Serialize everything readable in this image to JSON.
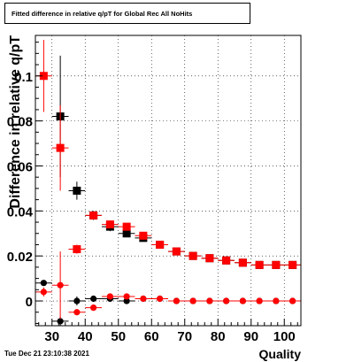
{
  "header": {
    "title": "Fitted difference in relative q/pT for Global Rec All NoHits"
  },
  "footer": {
    "timestamp": "Tue Dec 21 23:10:38 2021"
  },
  "chart_data": {
    "type": "scatter",
    "title": "Fitted difference in relative q/pT for Global Rec All NoHits",
    "xlabel": "Quality",
    "ylabel": "Difference in relative q/pT",
    "xlim": [
      25,
      105
    ],
    "ylim": [
      -0.011,
      0.118
    ],
    "x_ticks": [
      30,
      40,
      50,
      60,
      70,
      80,
      90,
      100
    ],
    "y_ticks": [
      0,
      0.02,
      0.04,
      0.06,
      0.08,
      0.1
    ],
    "y_tick_labels": [
      "0",
      "0.02",
      "0.04",
      "0.06",
      "0.08",
      "0.1"
    ],
    "grid": true,
    "series": [
      {
        "color": "#000000",
        "marker": "square",
        "x": [
          32.5,
          37.5,
          42.5,
          47.5,
          52.5,
          57.5,
          62.5,
          67.5,
          72.5,
          77.5,
          82.5,
          87.5,
          92.5,
          97.5,
          102.5
        ],
        "y": [
          0.082,
          0.049,
          0.038,
          0.033,
          0.03,
          0.028,
          0.025,
          0.022,
          0.02,
          0.019,
          0.018,
          0.017,
          0.016,
          0.016,
          0.016
        ],
        "yerr": [
          0.027,
          0.004,
          0.002,
          0.002,
          0.001,
          0.001,
          0.001,
          0.001,
          0.001,
          0.001,
          0.001,
          0.001,
          0.001,
          0.001,
          0.001
        ]
      },
      {
        "color": "#ff0000",
        "marker": "square",
        "x": [
          27.5,
          32.5,
          37.5,
          42.5,
          47.5,
          52.5,
          57.5,
          62.5,
          67.5,
          72.5,
          77.5,
          82.5,
          87.5,
          92.5,
          97.5,
          102.5
        ],
        "y": [
          0.1,
          0.068,
          0.023,
          0.038,
          0.034,
          0.033,
          0.029,
          0.025,
          0.022,
          0.02,
          0.019,
          0.018,
          0.017,
          0.016,
          0.016,
          0.016
        ],
        "yerr": [
          0.016,
          0.019,
          0.002,
          0.001,
          0.001,
          0.001,
          0.001,
          0.001,
          0.001,
          0.001,
          0.001,
          0.001,
          0.001,
          0.001,
          0.001,
          0.001
        ]
      },
      {
        "color": "#000000",
        "marker": "circle",
        "x": [
          27.5,
          32.5,
          37.5,
          42.5,
          47.5,
          52.5,
          57.5,
          62.5,
          67.5,
          72.5,
          77.5,
          82.5,
          87.5,
          92.5,
          97.5,
          102.5
        ],
        "y": [
          0.008,
          -0.009,
          0.0,
          0.001,
          0.001,
          0.0,
          0.001,
          0.001,
          0.0,
          0.0,
          0.0,
          0.0,
          0.0,
          0.0,
          0.0,
          0.0
        ],
        "yerr": [
          0.001,
          0.002,
          0.002,
          0.001,
          0.001,
          0.0005,
          0.0005,
          0.0005,
          0.0005,
          0.0005,
          0.0005,
          0.0005,
          0.0005,
          0.0005,
          0.0005,
          0.0005
        ]
      },
      {
        "color": "#ff0000",
        "marker": "circle",
        "x": [
          27.5,
          32.5,
          37.5,
          42.5,
          47.5,
          52.5,
          57.5,
          62.5,
          67.5,
          72.5,
          77.5,
          82.5,
          87.5,
          92.5,
          97.5,
          102.5
        ],
        "y": [
          0.004,
          0.007,
          -0.005,
          -0.003,
          0.002,
          0.002,
          0.001,
          0.001,
          0.0,
          0.0,
          0.0,
          0.0,
          0.0,
          0.0,
          0.0,
          0.0
        ],
        "yerr": [
          0.002,
          0.015,
          0.001,
          0.001,
          0.001,
          0.0005,
          0.0005,
          0.0005,
          0.0005,
          0.0005,
          0.0005,
          0.0005,
          0.0005,
          0.0005,
          0.0005,
          0.0005
        ]
      }
    ]
  }
}
